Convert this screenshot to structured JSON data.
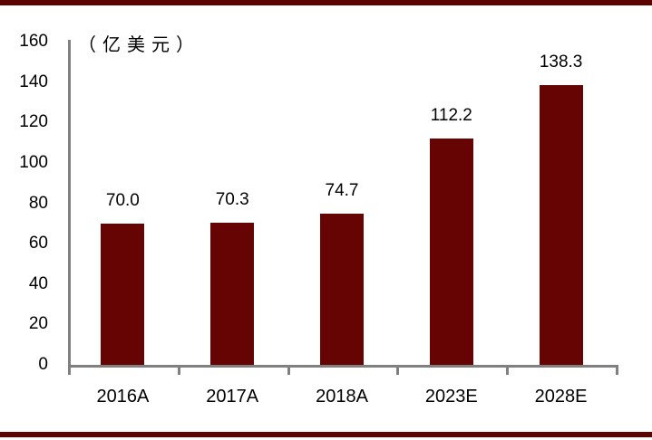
{
  "chart_data": {
    "type": "bar",
    "title": "",
    "unit_label": "（亿美元）",
    "categories": [
      "2016A",
      "2017A",
      "2018A",
      "2023E",
      "2028E"
    ],
    "values": [
      70.0,
      70.3,
      74.7,
      112.2,
      138.3
    ],
    "value_labels": [
      "70.0",
      "70.3",
      "74.7",
      "112.2",
      "138.3"
    ],
    "ylim": [
      0,
      160
    ],
    "ytick_step": 20,
    "ytick_labels": [
      "0",
      "20",
      "40",
      "60",
      "80",
      "100",
      "120",
      "140",
      "160"
    ],
    "grid": "off",
    "legend": "none",
    "colors": {
      "bar": "#660303",
      "border_band": "#5C0303",
      "axis": "#808080",
      "text": "#000000",
      "background": "#ffffff"
    }
  }
}
